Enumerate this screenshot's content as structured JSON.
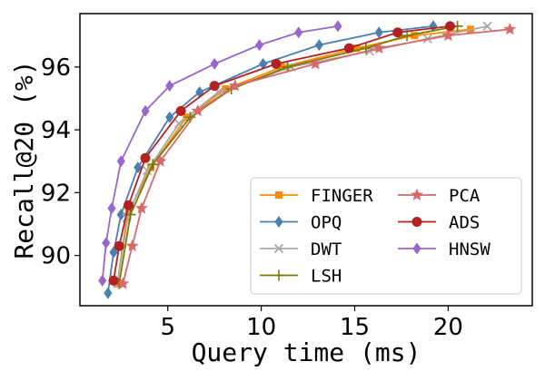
{
  "chart_data": {
    "type": "line",
    "xlabel": "Query time (ms)",
    "ylabel": "Recall@20 (%)",
    "xlim": [
      0.3,
      24.5
    ],
    "ylim": [
      88.4,
      97.7
    ],
    "x_ticks": [
      {
        "value": 5,
        "label": "5"
      },
      {
        "value": 10,
        "label": "10"
      },
      {
        "value": 15,
        "label": "15"
      },
      {
        "value": 20,
        "label": "20"
      }
    ],
    "y_ticks": [
      {
        "value": 90,
        "label": "90"
      },
      {
        "value": 92,
        "label": "92"
      },
      {
        "value": 94,
        "label": "94"
      },
      {
        "value": 96,
        "label": "96"
      }
    ],
    "legend_position": "bottom-right",
    "legend_columns": 2,
    "series": [
      {
        "name": "FINGER",
        "color": "#ff8c00",
        "marker": "square",
        "x": [
          2.3,
          2.9,
          4.1,
          6.0,
          8.1,
          11.1,
          15.1,
          18.2,
          21.2
        ],
        "y": [
          89.1,
          91.4,
          92.8,
          94.4,
          95.3,
          96.0,
          96.6,
          97.0,
          97.2
        ]
      },
      {
        "name": "OPQ",
        "color": "#4a7fb0",
        "marker": "diamond",
        "x": [
          1.8,
          2.1,
          2.5,
          3.4,
          5.1,
          6.7,
          10.1,
          13.1,
          16.3,
          19.2
        ],
        "y": [
          88.8,
          90.1,
          91.3,
          92.8,
          94.4,
          95.2,
          96.1,
          96.7,
          97.1,
          97.3
        ]
      },
      {
        "name": "DWT",
        "color": "#a8a8a8",
        "marker": "x",
        "x": [
          2.3,
          2.8,
          3.9,
          5.6,
          7.7,
          11.6,
          15.8,
          18.9,
          22.1
        ],
        "y": [
          89.1,
          91.2,
          92.7,
          94.2,
          95.2,
          96.0,
          96.5,
          96.9,
          97.3
        ]
      },
      {
        "name": "LSH",
        "color": "#7a7a00",
        "marker": "plus",
        "x": [
          2.4,
          3.0,
          4.2,
          6.2,
          8.4,
          11.4,
          15.6,
          17.8,
          20.5
        ],
        "y": [
          89.1,
          91.3,
          92.9,
          94.4,
          95.3,
          96.0,
          96.6,
          97.0,
          97.3
        ]
      },
      {
        "name": "PCA",
        "color": "#d66a6a",
        "marker": "star",
        "x": [
          2.6,
          3.1,
          3.6,
          4.6,
          6.6,
          8.6,
          12.9,
          16.3,
          20.0,
          23.3
        ],
        "y": [
          89.1,
          90.3,
          91.5,
          93.0,
          94.6,
          95.4,
          96.1,
          96.6,
          97.0,
          97.2
        ]
      },
      {
        "name": "ADS",
        "color": "#b22222",
        "marker": "circle",
        "x": [
          2.1,
          2.4,
          2.9,
          3.8,
          5.7,
          7.5,
          10.8,
          14.7,
          17.3,
          20.1
        ],
        "y": [
          89.2,
          90.3,
          91.6,
          93.1,
          94.6,
          95.4,
          96.1,
          96.6,
          97.1,
          97.3
        ]
      },
      {
        "name": "HNSW",
        "color": "#9966cc",
        "marker": "diamond",
        "x": [
          1.5,
          1.7,
          2.0,
          2.5,
          3.8,
          5.1,
          7.5,
          9.9,
          12.0,
          14.1
        ],
        "y": [
          89.2,
          90.4,
          91.5,
          93.0,
          94.6,
          95.4,
          96.1,
          96.7,
          97.1,
          97.3
        ]
      }
    ],
    "legend_order": [
      "FINGER",
      "OPQ",
      "DWT",
      "LSH",
      "PCA",
      "ADS",
      "HNSW"
    ]
  }
}
